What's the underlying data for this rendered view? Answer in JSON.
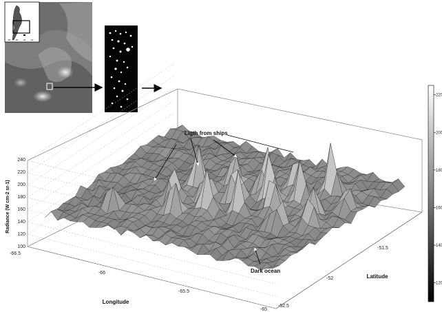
{
  "chart_data": {
    "type": "surface",
    "zlabel": "Radiance (W cm-2 sr-1)",
    "xlabel": "Longitude",
    "ylabel": "Latitude",
    "zlim": [
      100,
      240
    ],
    "xlim": [
      -66.5,
      -65
    ],
    "ylim": [
      -52.5,
      -51.5
    ],
    "z_ticks": [
      "100",
      "120",
      "140",
      "160",
      "180",
      "200",
      "220",
      "240"
    ],
    "x_ticks": [
      "-66.5",
      "-66",
      "-65.5",
      "-65"
    ],
    "y_ticks": [
      "-52.5",
      "-52",
      "-51.5"
    ],
    "colorbar_ticks": [
      "220",
      "200",
      "180",
      "160",
      "140",
      "120"
    ],
    "colorbar_range": [
      110,
      225
    ],
    "baseline_radiance": 150,
    "annotations": [
      {
        "text": "Ligth from ships"
      },
      {
        "text": "Dark ocean"
      }
    ],
    "peaks": [
      {
        "lon": -66.18,
        "lat": -52.28,
        "z": 190
      },
      {
        "lon": -65.98,
        "lat": -52.1,
        "z": 210
      },
      {
        "lon": -65.95,
        "lat": -51.95,
        "z": 228
      },
      {
        "lon": -65.88,
        "lat": -52.2,
        "z": 205
      },
      {
        "lon": -65.84,
        "lat": -52.02,
        "z": 200
      },
      {
        "lon": -65.8,
        "lat": -51.88,
        "z": 210
      },
      {
        "lon": -65.75,
        "lat": -52.12,
        "z": 215
      },
      {
        "lon": -65.7,
        "lat": -51.98,
        "z": 220
      },
      {
        "lon": -65.64,
        "lat": -51.85,
        "z": 230
      },
      {
        "lon": -65.6,
        "lat": -52.08,
        "z": 218
      },
      {
        "lon": -65.55,
        "lat": -51.92,
        "z": 225
      },
      {
        "lon": -65.5,
        "lat": -51.8,
        "z": 212
      },
      {
        "lon": -65.46,
        "lat": -52.0,
        "z": 210
      },
      {
        "lon": -65.4,
        "lat": -51.88,
        "z": 216
      },
      {
        "lon": -65.34,
        "lat": -52.1,
        "z": 200
      },
      {
        "lon": -65.32,
        "lat": -51.75,
        "z": 238
      },
      {
        "lon": -65.26,
        "lat": -51.95,
        "z": 205
      },
      {
        "lon": -65.2,
        "lat": -52.05,
        "z": 200
      },
      {
        "lon": -65.15,
        "lat": -51.85,
        "z": 196
      }
    ]
  },
  "overview_map": {
    "inset_ticks": [
      "-80",
      "-60",
      "-40",
      "-20"
    ]
  }
}
